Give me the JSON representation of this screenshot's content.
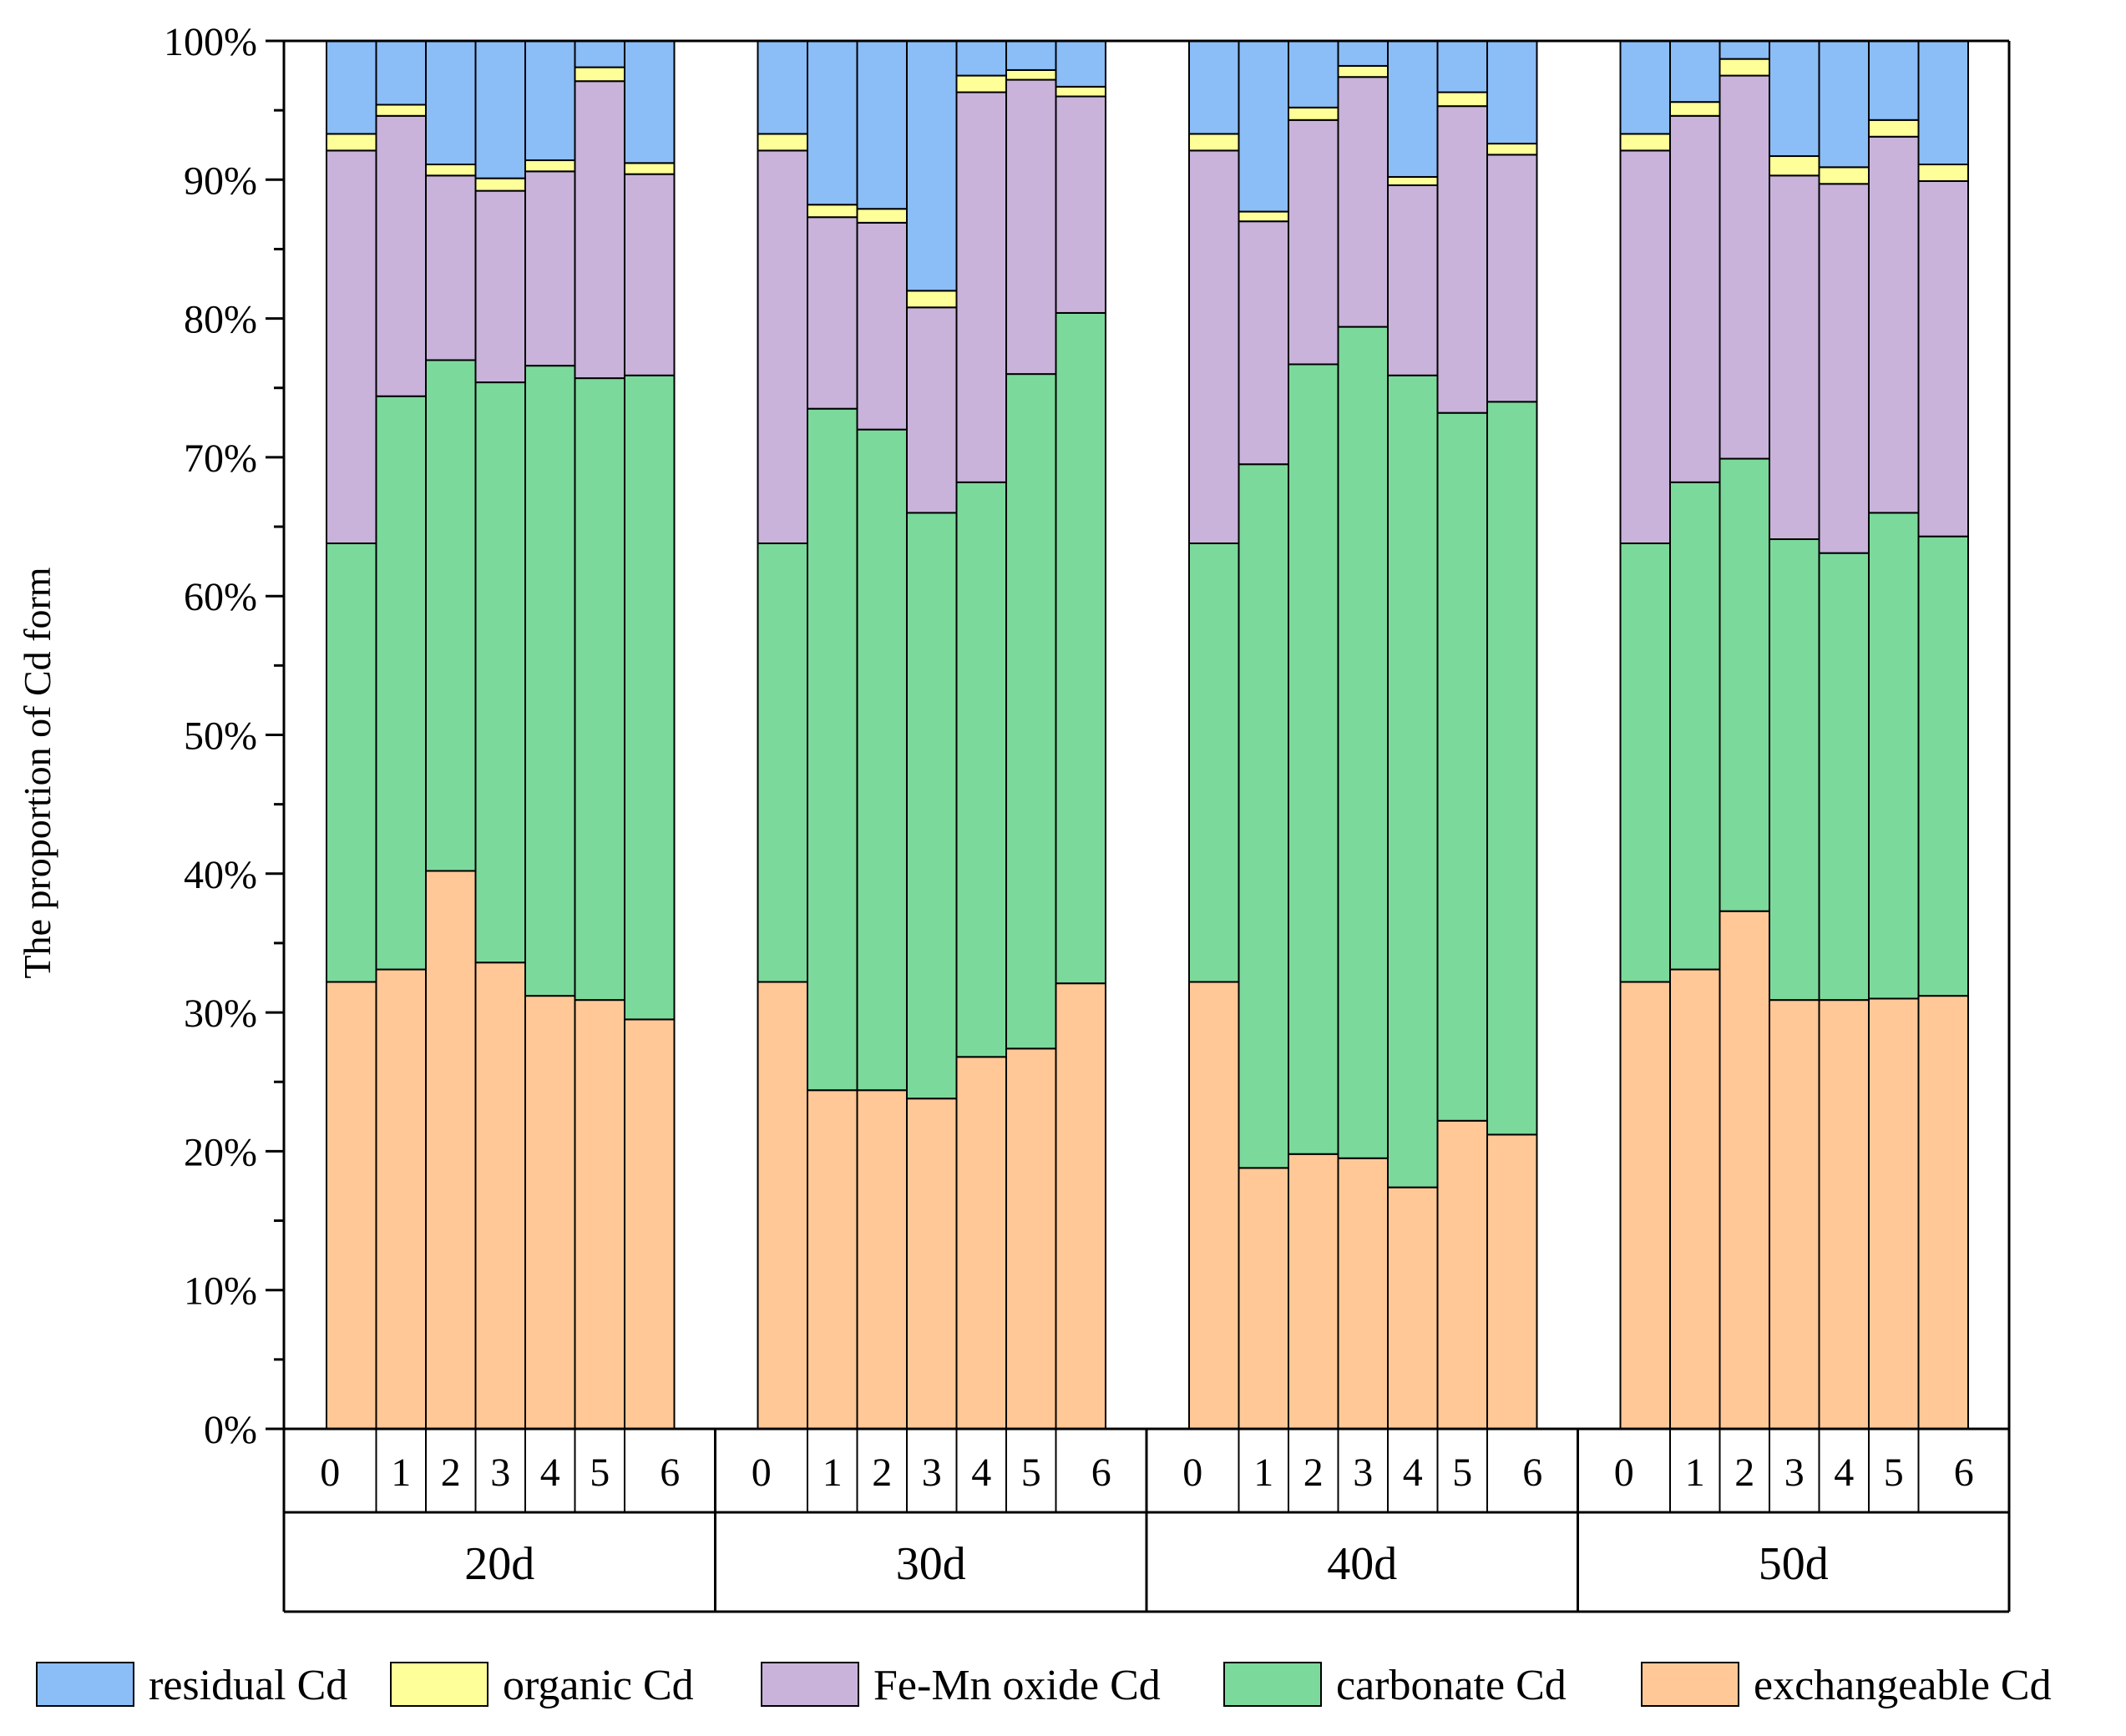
{
  "chart_data": {
    "type": "stacked_bar",
    "title": "",
    "xlabel": "",
    "ylabel": "The proportion of Cd form",
    "ylim": [
      0,
      100
    ],
    "y_ticks": [
      "0%",
      "10%",
      "20%",
      "30%",
      "40%",
      "50%",
      "60%",
      "70%",
      "80%",
      "90%",
      "100%"
    ],
    "groups": [
      {
        "label": "20d",
        "categories": [
          "0",
          "1",
          "2",
          "3",
          "4",
          "5",
          "6"
        ],
        "series": [
          {
            "name": "exchangeable Cd",
            "values": [
              32.2,
              33.1,
              40.2,
              33.6,
              31.2,
              30.9,
              29.5
            ]
          },
          {
            "name": "carbonate Cd",
            "values": [
              31.6,
              41.3,
              36.8,
              41.8,
              45.4,
              44.8,
              46.4
            ]
          },
          {
            "name": "Fe-Mn oxide Cd",
            "values": [
              28.3,
              20.2,
              13.3,
              13.8,
              14.0,
              21.4,
              14.5
            ]
          },
          {
            "name": "organic Cd",
            "values": [
              1.2,
              0.8,
              0.8,
              0.9,
              0.8,
              1.0,
              0.8
            ]
          },
          {
            "name": "residual Cd",
            "values": [
              6.7,
              4.6,
              8.9,
              9.9,
              8.6,
              1.9,
              8.8
            ]
          }
        ]
      },
      {
        "label": "30d",
        "categories": [
          "0",
          "1",
          "2",
          "3",
          "4",
          "5",
          "6"
        ],
        "series": [
          {
            "name": "exchangeable Cd",
            "values": [
              32.2,
              24.4,
              24.4,
              23.8,
              26.8,
              27.4,
              32.1
            ]
          },
          {
            "name": "carbonate Cd",
            "values": [
              31.6,
              49.1,
              47.6,
              42.2,
              41.4,
              48.6,
              48.3
            ]
          },
          {
            "name": "Fe-Mn oxide Cd",
            "values": [
              28.3,
              13.8,
              14.9,
              14.8,
              28.1,
              21.2,
              15.6
            ]
          },
          {
            "name": "organic Cd",
            "values": [
              1.2,
              0.9,
              1.0,
              1.2,
              1.2,
              0.7,
              0.7
            ]
          },
          {
            "name": "residual Cd",
            "values": [
              6.7,
              11.8,
              12.1,
              18.0,
              2.5,
              2.1,
              3.3
            ]
          }
        ]
      },
      {
        "label": "40d",
        "categories": [
          "0",
          "1",
          "2",
          "3",
          "4",
          "5",
          "6"
        ],
        "series": [
          {
            "name": "exchangeable Cd",
            "values": [
              32.2,
              18.8,
              19.8,
              19.5,
              17.4,
              22.2,
              21.2
            ]
          },
          {
            "name": "carbonate Cd",
            "values": [
              31.6,
              50.7,
              56.9,
              59.9,
              58.5,
              51.0,
              52.8
            ]
          },
          {
            "name": "Fe-Mn oxide Cd",
            "values": [
              28.3,
              17.5,
              17.6,
              18.0,
              13.7,
              22.1,
              17.8
            ]
          },
          {
            "name": "organic Cd",
            "values": [
              1.2,
              0.7,
              0.9,
              0.8,
              0.6,
              1.0,
              0.8
            ]
          },
          {
            "name": "residual Cd",
            "values": [
              6.7,
              12.3,
              4.8,
              1.8,
              9.8,
              3.7,
              7.4
            ]
          }
        ]
      },
      {
        "label": "50d",
        "categories": [
          "0",
          "1",
          "2",
          "3",
          "4",
          "5",
          "6"
        ],
        "series": [
          {
            "name": "exchangeable Cd",
            "values": [
              32.2,
              33.1,
              37.3,
              30.9,
              30.9,
              31.0,
              31.2
            ]
          },
          {
            "name": "carbonate Cd",
            "values": [
              31.6,
              35.1,
              32.6,
              33.2,
              32.2,
              35.0,
              33.1
            ]
          },
          {
            "name": "Fe-Mn oxide Cd",
            "values": [
              28.3,
              26.4,
              27.6,
              26.2,
              26.6,
              27.1,
              25.6
            ]
          },
          {
            "name": "organic Cd",
            "values": [
              1.2,
              1.0,
              1.2,
              1.4,
              1.2,
              1.2,
              1.2
            ]
          },
          {
            "name": "residual Cd",
            "values": [
              6.7,
              4.4,
              1.3,
              8.3,
              9.1,
              5.7,
              8.9
            ]
          }
        ]
      }
    ],
    "legend": {
      "placement": "bottom",
      "entries": [
        "residual Cd",
        "organic Cd",
        "Fe-Mn oxide Cd",
        "carbonate Cd",
        "exchangeable Cd"
      ]
    },
    "colors": {
      "exchangeable Cd": "#FFC896",
      "carbonate Cd": "#7CD99C",
      "Fe-Mn oxide Cd": "#C9B3DA",
      "organic Cd": "#FFFF99",
      "residual Cd": "#8BBDF7"
    }
  }
}
